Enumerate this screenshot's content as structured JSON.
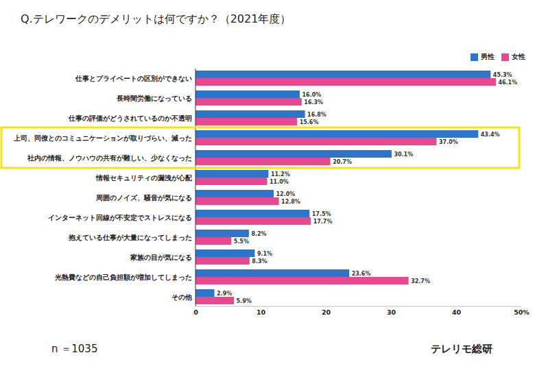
{
  "chart_data": {
    "type": "bar",
    "title": "Q.テレワークのデメリットは何ですか？（2021年度）",
    "orientation": "horizontal",
    "categories": [
      "仕事とプライベートの区別ができない",
      "長時間労働になっている",
      "仕事の評価がどうされているのか不透明",
      "上司、同僚とのコミュニケーションが取りづらい、減った",
      "社内の情報、ノウハウの共有が難しい、少なくなった",
      "情報セキュリティの漏洩が心配",
      "周囲のノイズ、騒音が気になる",
      "インターネット回線が不安定でストレスになる",
      "抱えている仕事が大量になってしまった",
      "家族の目が気になる",
      "光熱費などの自己負担額が増加してしまった",
      "その他"
    ],
    "series": [
      {
        "name": "男性",
        "color": "#2e75c9",
        "values": [
          45.3,
          16.0,
          16.8,
          43.4,
          30.1,
          11.2,
          12.0,
          17.5,
          8.2,
          9.1,
          23.6,
          2.9
        ],
        "value_labels": [
          "45.3%",
          "16.0%",
          "16.8%",
          "43.4%",
          "30.1%",
          "11.2%",
          "12.0%",
          "17.5%",
          "8.2%",
          "9.1%",
          "23.6%",
          "2.9%"
        ]
      },
      {
        "name": "女性",
        "color": "#e8488e",
        "values": [
          46.1,
          16.3,
          15.6,
          37.0,
          20.7,
          11.0,
          12.8,
          17.7,
          5.5,
          8.3,
          32.7,
          5.9
        ],
        "value_labels": [
          "46.1%",
          "16.3%",
          "15.6%",
          "37.0%",
          "20.7%",
          "11.0%",
          "12.8%",
          "17.7%",
          "5.5%",
          "8.3%",
          "32.7%",
          "5.9%"
        ]
      }
    ],
    "xlim": [
      0,
      50
    ],
    "xticks": [
      0,
      10,
      20,
      30,
      40,
      {
        "value": 50,
        "label": "50%"
      }
    ],
    "grid": false,
    "legend": "top-right",
    "data_labels": true,
    "annotations": [
      "n ＝1035",
      "テレリモ総研"
    ]
  }
}
